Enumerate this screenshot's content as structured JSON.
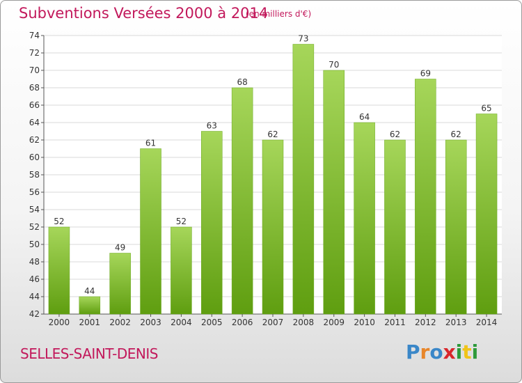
{
  "title": "Subventions Versées 2000 à 2014",
  "unit": "(en milliers d'€)",
  "commune": "SELLES-SAINT-DENIS",
  "logo": {
    "text": "Proxiti",
    "colors": [
      "#3a87c8",
      "#e8862a",
      "#3a87c8",
      "#d9262b",
      "#2d9a3a",
      "#f0c419",
      "#2d9a3a"
    ]
  },
  "colors": {
    "bar_top": "#a6d65a",
    "bar_bottom": "#5f9e10",
    "title": "#c2185b"
  },
  "chart_data": {
    "type": "bar",
    "title": "Subventions Versées 2000 à 2014",
    "categories": [
      "2000",
      "2001",
      "2002",
      "2003",
      "2004",
      "2005",
      "2006",
      "2007",
      "2008",
      "2009",
      "2010",
      "2011",
      "2012",
      "2013",
      "2014"
    ],
    "values": [
      52,
      44,
      49,
      61,
      52,
      63,
      68,
      62,
      73,
      70,
      64,
      62,
      69,
      62,
      65
    ],
    "ylim": [
      42,
      74
    ],
    "yticks": [
      42,
      44,
      46,
      48,
      50,
      52,
      54,
      56,
      58,
      60,
      62,
      64,
      66,
      68,
      70,
      72,
      74
    ],
    "grid": true,
    "xlabel": "",
    "ylabel": ""
  }
}
